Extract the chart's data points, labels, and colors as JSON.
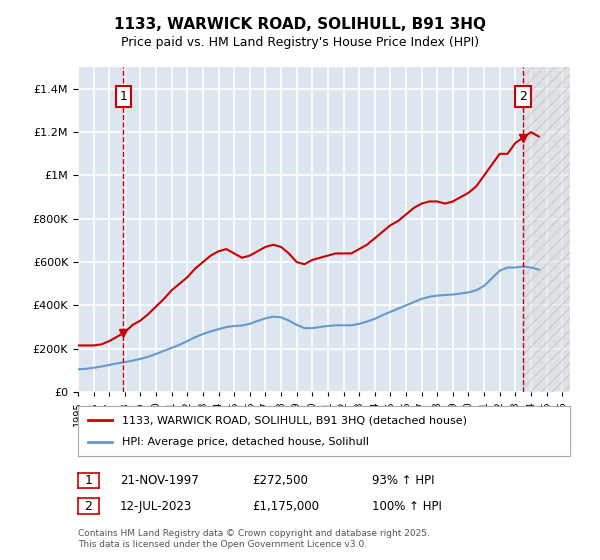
{
  "title": "1133, WARWICK ROAD, SOLIHULL, B91 3HQ",
  "subtitle": "Price paid vs. HM Land Registry's House Price Index (HPI)",
  "ylabel": "",
  "background_color": "#dce6f0",
  "plot_bg_color": "#dce6f0",
  "grid_color": "#ffffff",
  "red_color": "#cc0000",
  "blue_color": "#6699cc",
  "hatch_color": "#cccccc",
  "annotation1_date": 1997.9,
  "annotation2_date": 2023.5,
  "annotation1_label": "1",
  "annotation2_label": "2",
  "annotation1_price": 272500,
  "annotation2_price": 1175000,
  "legend_label_red": "1133, WARWICK ROAD, SOLIHULL, B91 3HQ (detached house)",
  "legend_label_blue": "HPI: Average price, detached house, Solihull",
  "table_row1": [
    "1",
    "21-NOV-1997",
    "£272,500",
    "93% ↑ HPI"
  ],
  "table_row2": [
    "2",
    "12-JUL-2023",
    "£1,175,000",
    "100% ↑ HPI"
  ],
  "footer": "Contains HM Land Registry data © Crown copyright and database right 2025.\nThis data is licensed under the Open Government Licence v3.0.",
  "ylim": [
    0,
    1500000
  ],
  "xlim_start": 1995.0,
  "xlim_end": 2026.5,
  "red_line": {
    "x": [
      1995.0,
      1995.5,
      1996.0,
      1996.5,
      1997.0,
      1997.5,
      1997.9,
      1998.2,
      1998.5,
      1999.0,
      1999.5,
      2000.0,
      2000.5,
      2001.0,
      2001.5,
      2002.0,
      2002.5,
      2003.0,
      2003.5,
      2004.0,
      2004.5,
      2005.0,
      2005.5,
      2006.0,
      2006.5,
      2007.0,
      2007.5,
      2008.0,
      2008.5,
      2009.0,
      2009.5,
      2010.0,
      2010.5,
      2011.0,
      2011.5,
      2012.0,
      2012.5,
      2013.0,
      2013.5,
      2014.0,
      2014.5,
      2015.0,
      2015.5,
      2016.0,
      2016.5,
      2017.0,
      2017.5,
      2018.0,
      2018.5,
      2019.0,
      2019.5,
      2020.0,
      2020.5,
      2021.0,
      2021.5,
      2022.0,
      2022.5,
      2023.0,
      2023.5,
      2024.0,
      2024.5
    ],
    "y": [
      215000,
      215000,
      215000,
      220000,
      235000,
      255000,
      272500,
      290000,
      310000,
      330000,
      360000,
      395000,
      430000,
      470000,
      500000,
      530000,
      570000,
      600000,
      630000,
      650000,
      660000,
      640000,
      620000,
      630000,
      650000,
      670000,
      680000,
      670000,
      640000,
      600000,
      590000,
      610000,
      620000,
      630000,
      640000,
      640000,
      640000,
      660000,
      680000,
      710000,
      740000,
      770000,
      790000,
      820000,
      850000,
      870000,
      880000,
      880000,
      870000,
      880000,
      900000,
      920000,
      950000,
      1000000,
      1050000,
      1100000,
      1100000,
      1150000,
      1175000,
      1200000,
      1180000
    ]
  },
  "blue_line": {
    "x": [
      1995.0,
      1995.5,
      1996.0,
      1996.5,
      1997.0,
      1997.5,
      1998.0,
      1998.5,
      1999.0,
      1999.5,
      2000.0,
      2000.5,
      2001.0,
      2001.5,
      2002.0,
      2002.5,
      2003.0,
      2003.5,
      2004.0,
      2004.5,
      2005.0,
      2005.5,
      2006.0,
      2006.5,
      2007.0,
      2007.5,
      2008.0,
      2008.5,
      2009.0,
      2009.5,
      2010.0,
      2010.5,
      2011.0,
      2011.5,
      2012.0,
      2012.5,
      2013.0,
      2013.5,
      2014.0,
      2014.5,
      2015.0,
      2015.5,
      2016.0,
      2016.5,
      2017.0,
      2017.5,
      2018.0,
      2018.5,
      2019.0,
      2019.5,
      2020.0,
      2020.5,
      2021.0,
      2021.5,
      2022.0,
      2022.5,
      2023.0,
      2023.5,
      2024.0,
      2024.5
    ],
    "x_data": [
      1995.0,
      1995.5,
      1996.0,
      1996.5,
      1997.0,
      1997.5,
      1998.0,
      1998.5,
      1999.0,
      1999.5,
      2000.0,
      2000.5,
      2001.0,
      2001.5,
      2002.0,
      2002.5,
      2003.0,
      2003.5,
      2004.0,
      2004.5,
      2005.0,
      2005.5,
      2006.0,
      2006.5,
      2007.0,
      2007.5,
      2008.0,
      2008.5,
      2009.0,
      2009.5,
      2010.0,
      2010.5,
      2011.0,
      2011.5,
      2012.0,
      2012.5,
      2013.0,
      2013.5,
      2014.0,
      2014.5,
      2015.0,
      2015.5,
      2016.0,
      2016.5,
      2017.0,
      2017.5,
      2018.0,
      2018.5,
      2019.0,
      2019.5,
      2020.0,
      2020.5,
      2021.0,
      2021.5,
      2022.0,
      2022.5,
      2023.0,
      2023.5,
      2024.0,
      2024.5
    ],
    "y": [
      105000,
      107000,
      112000,
      118000,
      125000,
      132000,
      138000,
      145000,
      153000,
      163000,
      176000,
      190000,
      204000,
      218000,
      235000,
      253000,
      268000,
      280000,
      290000,
      300000,
      305000,
      307000,
      315000,
      328000,
      340000,
      348000,
      345000,
      330000,
      310000,
      295000,
      295000,
      300000,
      305000,
      308000,
      308000,
      308000,
      315000,
      325000,
      338000,
      355000,
      370000,
      385000,
      400000,
      415000,
      430000,
      440000,
      445000,
      448000,
      450000,
      455000,
      460000,
      470000,
      490000,
      525000,
      560000,
      575000,
      575000,
      580000,
      575000,
      565000
    ]
  }
}
